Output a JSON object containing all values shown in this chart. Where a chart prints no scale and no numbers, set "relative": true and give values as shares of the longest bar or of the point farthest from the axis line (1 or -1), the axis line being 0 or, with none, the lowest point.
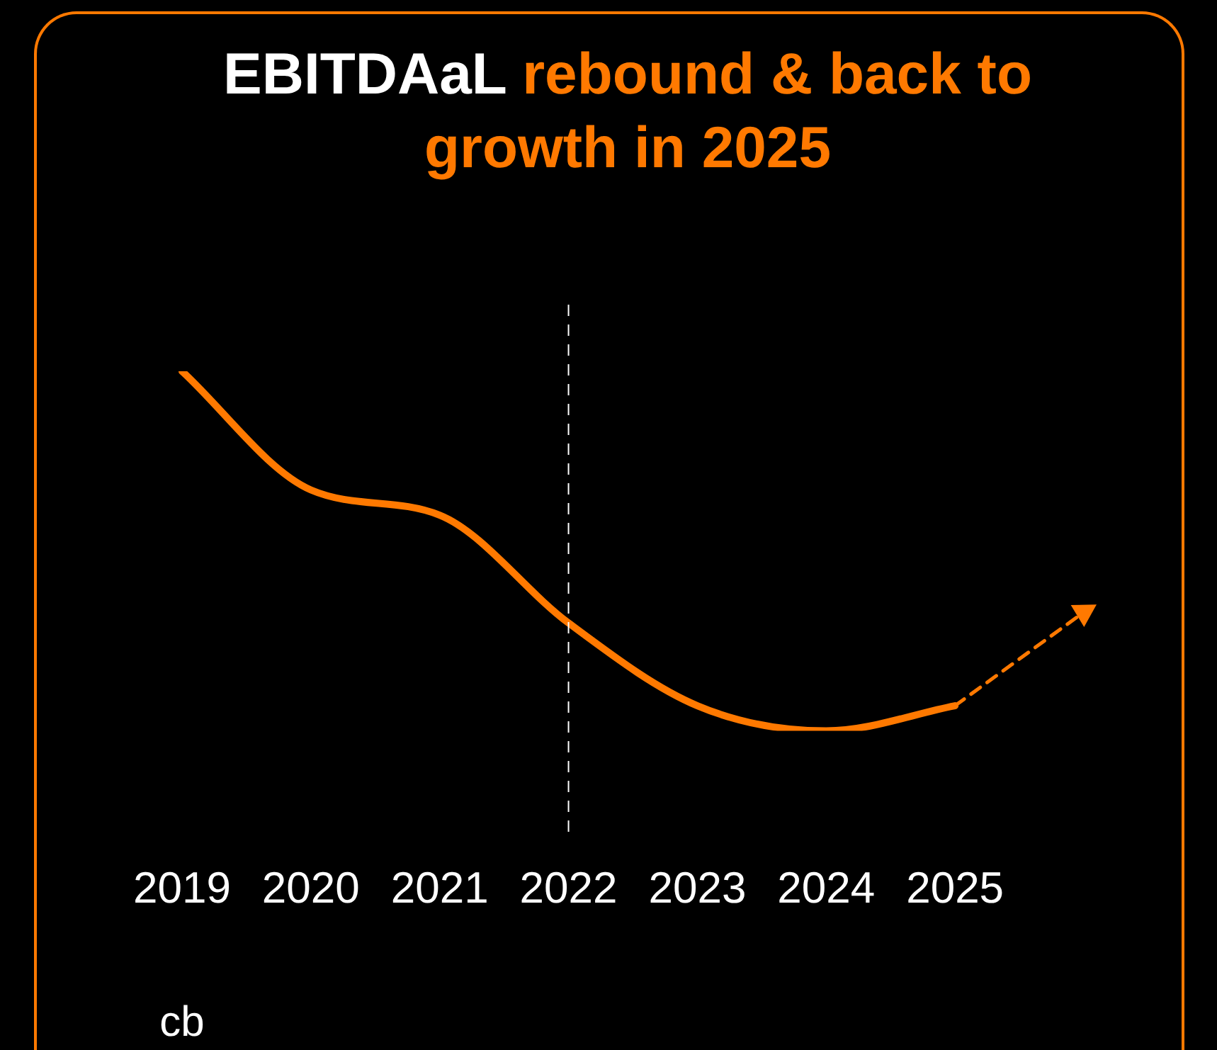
{
  "chart_data": {
    "type": "line",
    "relative": true,
    "title": "EBITDAaL rebound & back to growth in 2025",
    "categories": [
      "2019",
      "2020",
      "2021",
      "2022",
      "2023",
      "2024",
      "2025",
      null
    ],
    "series": [
      {
        "color": "#ff7900",
        "values": [
          1,
          0.67,
          0.6,
          0.3,
          0.07,
          0,
          0.07,
          null
        ]
      },
      {
        "color": "#ff7900",
        "line_style": "dashed",
        "marker": "triangle",
        "values": [
          null,
          null,
          null,
          null,
          null,
          null,
          0.07,
          0.33
        ]
      }
    ],
    "ref_lines": [
      {
        "axis": "x",
        "value": "2022",
        "color": "#ffffff",
        "line_style": "dashed"
      }
    ],
    "annotations": [
      "cb"
    ],
    "legend": false
  }
}
